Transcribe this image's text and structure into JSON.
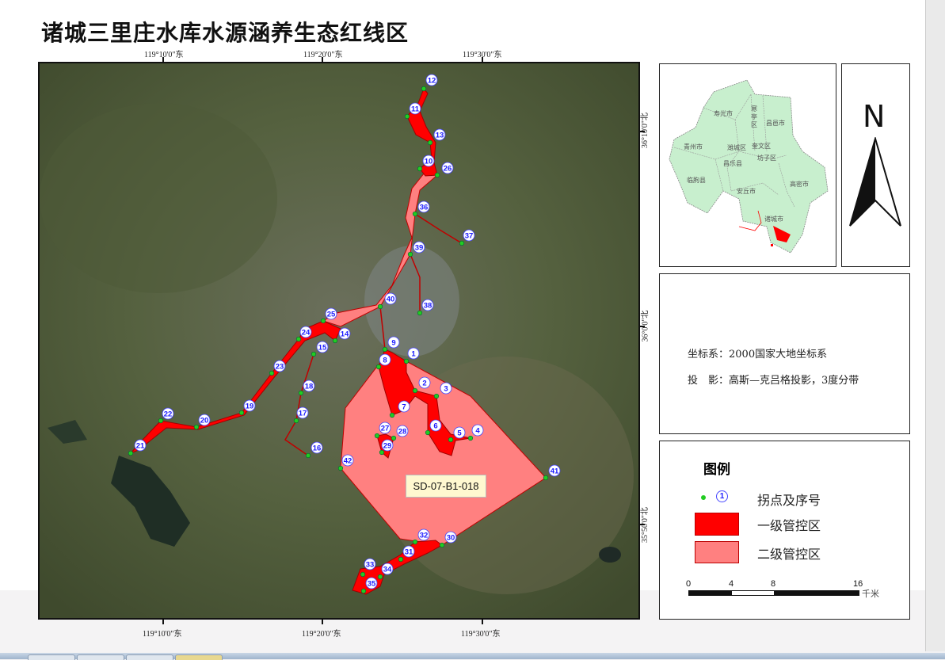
{
  "title": "诸城三里庄水库水源涵养生态红线区",
  "coords": {
    "top_lon": [
      "119°10'0\"东",
      "119°20'0\"东",
      "119°30'0\"东"
    ],
    "bottom_lon": [
      "119°10'0\"东",
      "119°20'0\"东",
      "119°30'0\"东"
    ],
    "right_lat": [
      "36°10'0\"北",
      "36°0'0\"北",
      "35°50'0\"北"
    ]
  },
  "map": {
    "zone_label": "SD-07-B1-018",
    "vertex_labels": [
      "1",
      "2",
      "3",
      "4",
      "5",
      "6",
      "7",
      "8",
      "9",
      "10",
      "11",
      "12",
      "13",
      "14",
      "15",
      "16",
      "17",
      "18",
      "19",
      "20",
      "21",
      "22",
      "23",
      "24",
      "25",
      "26",
      "27",
      "28",
      "29",
      "30",
      "31",
      "32",
      "33",
      "34",
      "35",
      "36",
      "37",
      "38",
      "39",
      "40",
      "41",
      "42"
    ],
    "colors": {
      "level1": "#ff0000",
      "level2": "#ff8080",
      "vertex": "#22cc22",
      "vertex_label": "#1a1aff"
    }
  },
  "inset": {
    "regions": [
      "寿光市",
      "寒亭区",
      "昌邑市",
      "青州市",
      "潍城区",
      "奎文区",
      "坊子区",
      "昌乐县",
      "临朐县",
      "安丘市",
      "高密市",
      "诸城市"
    ],
    "fill": "#c8efce"
  },
  "north_arrow": {
    "label": "N"
  },
  "info": {
    "crs": "坐标系：2000国家大地坐标系",
    "projection": "投　影：高斯—克吕格投影，3度分带"
  },
  "legend": {
    "title": "图例",
    "items": [
      {
        "label": "拐点及序号",
        "sample": "1"
      },
      {
        "label": "一级管控区"
      },
      {
        "label": "二级管控区"
      }
    ],
    "scale": {
      "ticks": [
        "0",
        "4",
        "8",
        "16"
      ],
      "unit": "千米"
    }
  }
}
